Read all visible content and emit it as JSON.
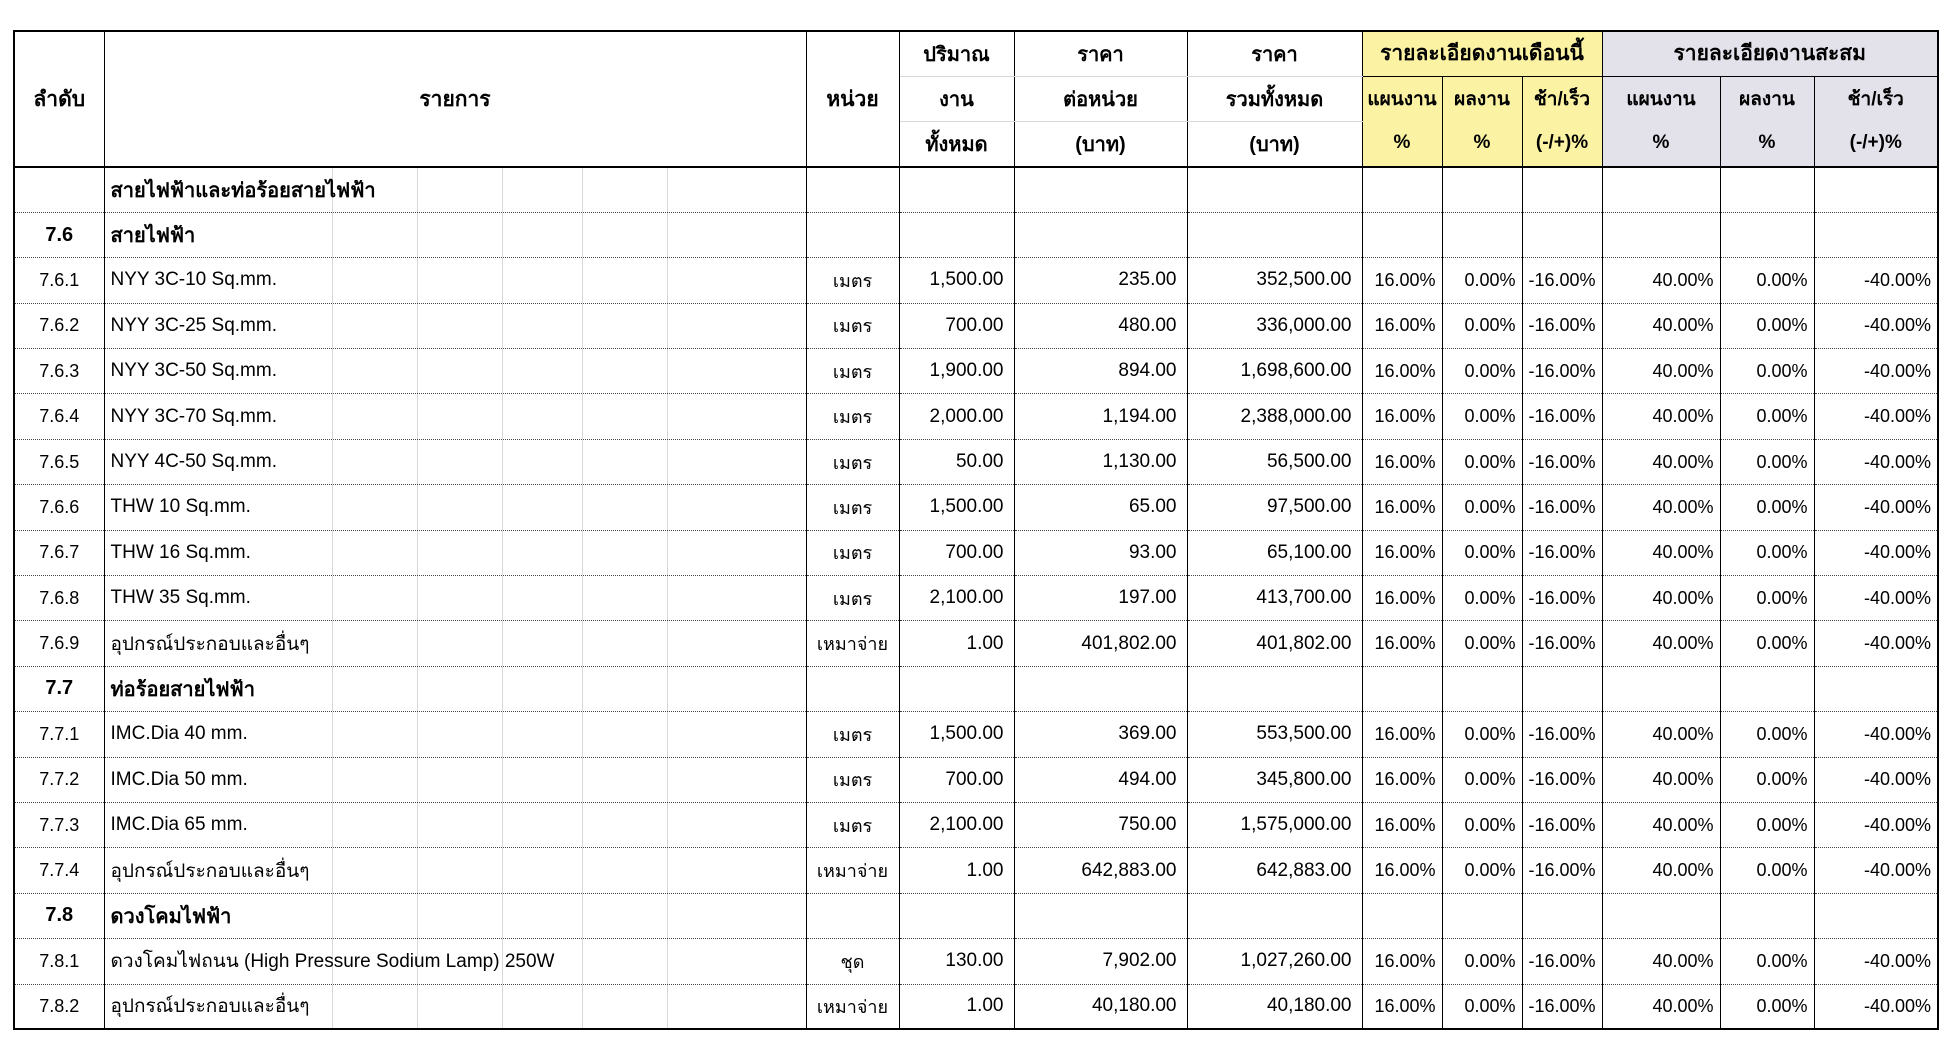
{
  "colors": {
    "month_group_bg": "#FBF3A3",
    "cumulative_group_bg": "#E3E2EB",
    "border": "#000000",
    "faint_gridline": "#d8d8d8"
  },
  "table": {
    "header": {
      "no": "ลำดับ",
      "item": "รายการ",
      "unit": "หน่วย",
      "qty_lines": [
        "ปริมาณ",
        "งาน",
        "ทั้งหมด"
      ],
      "unit_price_lines": [
        "ราคา",
        "ต่อหน่วย",
        "(บาท)"
      ],
      "total_lines": [
        "ราคา",
        "รวมทั้งหมด",
        "(บาท)"
      ],
      "month_group": "รายละเอียดงานเดือนนี้",
      "cumulative_group": "รายละเอียดงานสะสม",
      "sub_plan": "แผนงาน",
      "sub_actual": "ผลงาน",
      "sub_diff": "ช้า/เร็ว",
      "sub_pct": "%",
      "sub_diff_pct": "(-/+)%"
    },
    "rows": [
      {
        "type": "section",
        "no": "",
        "item": "สายไฟฟ้าและท่อร้อยสายไฟฟ้า",
        "unit": "",
        "qty": "",
        "unit_price": "",
        "total": "",
        "m_plan": "",
        "m_actual": "",
        "m_diff": "",
        "c_plan": "",
        "c_actual": "",
        "c_diff": ""
      },
      {
        "type": "section",
        "no": "7.6",
        "item": "สายไฟฟ้า",
        "unit": "",
        "qty": "",
        "unit_price": "",
        "total": "",
        "m_plan": "",
        "m_actual": "",
        "m_diff": "",
        "c_plan": "",
        "c_actual": "",
        "c_diff": ""
      },
      {
        "type": "item",
        "no": "7.6.1",
        "item": "NYY 3C-10 Sq.mm.",
        "unit": "เมตร",
        "qty": "1,500.00",
        "unit_price": "235.00",
        "total": "352,500.00",
        "m_plan": "16.00%",
        "m_actual": "0.00%",
        "m_diff": "-16.00%",
        "c_plan": "40.00%",
        "c_actual": "0.00%",
        "c_diff": "-40.00%"
      },
      {
        "type": "item",
        "no": "7.6.2",
        "item": "NYY 3C-25 Sq.mm.",
        "unit": "เมตร",
        "qty": "700.00",
        "unit_price": "480.00",
        "total": "336,000.00",
        "m_plan": "16.00%",
        "m_actual": "0.00%",
        "m_diff": "-16.00%",
        "c_plan": "40.00%",
        "c_actual": "0.00%",
        "c_diff": "-40.00%"
      },
      {
        "type": "item",
        "no": "7.6.3",
        "item": "NYY 3C-50 Sq.mm.",
        "unit": "เมตร",
        "qty": "1,900.00",
        "unit_price": "894.00",
        "total": "1,698,600.00",
        "m_plan": "16.00%",
        "m_actual": "0.00%",
        "m_diff": "-16.00%",
        "c_plan": "40.00%",
        "c_actual": "0.00%",
        "c_diff": "-40.00%"
      },
      {
        "type": "item",
        "no": "7.6.4",
        "item": "NYY 3C-70 Sq.mm.",
        "unit": "เมตร",
        "qty": "2,000.00",
        "unit_price": "1,194.00",
        "total": "2,388,000.00",
        "m_plan": "16.00%",
        "m_actual": "0.00%",
        "m_diff": "-16.00%",
        "c_plan": "40.00%",
        "c_actual": "0.00%",
        "c_diff": "-40.00%"
      },
      {
        "type": "item",
        "no": "7.6.5",
        "item": "NYY 4C-50 Sq.mm.",
        "unit": "เมตร",
        "qty": "50.00",
        "unit_price": "1,130.00",
        "total": "56,500.00",
        "m_plan": "16.00%",
        "m_actual": "0.00%",
        "m_diff": "-16.00%",
        "c_plan": "40.00%",
        "c_actual": "0.00%",
        "c_diff": "-40.00%"
      },
      {
        "type": "item",
        "no": "7.6.6",
        "item": "THW 10 Sq.mm.",
        "unit": "เมตร",
        "qty": "1,500.00",
        "unit_price": "65.00",
        "total": "97,500.00",
        "m_plan": "16.00%",
        "m_actual": "0.00%",
        "m_diff": "-16.00%",
        "c_plan": "40.00%",
        "c_actual": "0.00%",
        "c_diff": "-40.00%"
      },
      {
        "type": "item",
        "no": "7.6.7",
        "item": "THW 16 Sq.mm.",
        "unit": "เมตร",
        "qty": "700.00",
        "unit_price": "93.00",
        "total": "65,100.00",
        "m_plan": "16.00%",
        "m_actual": "0.00%",
        "m_diff": "-16.00%",
        "c_plan": "40.00%",
        "c_actual": "0.00%",
        "c_diff": "-40.00%"
      },
      {
        "type": "item",
        "no": "7.6.8",
        "item": "THW 35 Sq.mm.",
        "unit": "เมตร",
        "qty": "2,100.00",
        "unit_price": "197.00",
        "total": "413,700.00",
        "m_plan": "16.00%",
        "m_actual": "0.00%",
        "m_diff": "-16.00%",
        "c_plan": "40.00%",
        "c_actual": "0.00%",
        "c_diff": "-40.00%"
      },
      {
        "type": "item",
        "no": "7.6.9",
        "item": "อุปกรณ์ประกอบและอื่นๆ",
        "unit": "เหมาจ่าย",
        "qty": "1.00",
        "unit_price": "401,802.00",
        "total": "401,802.00",
        "m_plan": "16.00%",
        "m_actual": "0.00%",
        "m_diff": "-16.00%",
        "c_plan": "40.00%",
        "c_actual": "0.00%",
        "c_diff": "-40.00%"
      },
      {
        "type": "section",
        "no": "7.7",
        "item": "ท่อร้อยสายไฟฟ้า",
        "unit": "",
        "qty": "",
        "unit_price": "",
        "total": "",
        "m_plan": "",
        "m_actual": "",
        "m_diff": "",
        "c_plan": "",
        "c_actual": "",
        "c_diff": ""
      },
      {
        "type": "item",
        "no": "7.7.1",
        "item": "IMC.Dia 40 mm.",
        "unit": "เมตร",
        "qty": "1,500.00",
        "unit_price": "369.00",
        "total": "553,500.00",
        "m_plan": "16.00%",
        "m_actual": "0.00%",
        "m_diff": "-16.00%",
        "c_plan": "40.00%",
        "c_actual": "0.00%",
        "c_diff": "-40.00%"
      },
      {
        "type": "item",
        "no": "7.7.2",
        "item": "IMC.Dia 50 mm.",
        "unit": "เมตร",
        "qty": "700.00",
        "unit_price": "494.00",
        "total": "345,800.00",
        "m_plan": "16.00%",
        "m_actual": "0.00%",
        "m_diff": "-16.00%",
        "c_plan": "40.00%",
        "c_actual": "0.00%",
        "c_diff": "-40.00%"
      },
      {
        "type": "item",
        "no": "7.7.3",
        "item": "IMC.Dia 65 mm.",
        "unit": "เมตร",
        "qty": "2,100.00",
        "unit_price": "750.00",
        "total": "1,575,000.00",
        "m_plan": "16.00%",
        "m_actual": "0.00%",
        "m_diff": "-16.00%",
        "c_plan": "40.00%",
        "c_actual": "0.00%",
        "c_diff": "-40.00%"
      },
      {
        "type": "item",
        "no": "7.7.4",
        "item": "อุปกรณ์ประกอบและอื่นๆ",
        "unit": "เหมาจ่าย",
        "qty": "1.00",
        "unit_price": "642,883.00",
        "total": "642,883.00",
        "m_plan": "16.00%",
        "m_actual": "0.00%",
        "m_diff": "-16.00%",
        "c_plan": "40.00%",
        "c_actual": "0.00%",
        "c_diff": "-40.00%"
      },
      {
        "type": "section",
        "no": "7.8",
        "item": "ดวงโคมไฟฟ้า",
        "unit": "",
        "qty": "",
        "unit_price": "",
        "total": "",
        "m_plan": "",
        "m_actual": "",
        "m_diff": "",
        "c_plan": "",
        "c_actual": "",
        "c_diff": ""
      },
      {
        "type": "item",
        "no": "7.8.1",
        "item": "ดวงโคมไฟถนน (High Pressure Sodium Lamp) 250W",
        "unit": "ชุด",
        "qty": "130.00",
        "unit_price": "7,902.00",
        "total": "1,027,260.00",
        "m_plan": "16.00%",
        "m_actual": "0.00%",
        "m_diff": "-16.00%",
        "c_plan": "40.00%",
        "c_actual": "0.00%",
        "c_diff": "-40.00%"
      },
      {
        "type": "item",
        "no": "7.8.2",
        "item": "อุปกรณ์ประกอบและอื่นๆ",
        "unit": "เหมาจ่าย",
        "qty": "1.00",
        "unit_price": "40,180.00",
        "total": "40,180.00",
        "m_plan": "16.00%",
        "m_actual": "0.00%",
        "m_diff": "-16.00%",
        "c_plan": "40.00%",
        "c_actual": "0.00%",
        "c_diff": "-40.00%"
      }
    ]
  }
}
